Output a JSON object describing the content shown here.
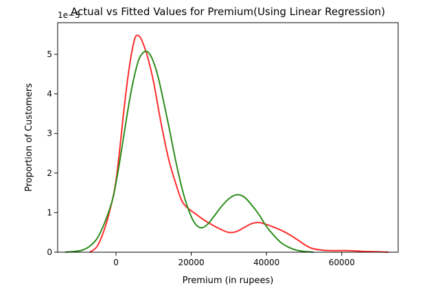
{
  "chart_data": {
    "type": "line",
    "title": "Actual vs Fitted Values for Premium(Using Linear Regression)",
    "xlabel": "Premium (in rupees)",
    "ylabel": "Proportion of Customers",
    "y_scale_label": "1e−5",
    "xlim": [
      -15500,
      75000
    ],
    "ylim": [
      0,
      5.8
    ],
    "x_ticks": [
      0,
      20000,
      40000,
      60000
    ],
    "x_tick_labels": [
      "0",
      "20000",
      "40000",
      "60000"
    ],
    "y_ticks": [
      0,
      1,
      2,
      3,
      4,
      5
    ],
    "y_tick_labels": [
      "0",
      "1",
      "2",
      "3",
      "4",
      "5"
    ],
    "grid": false,
    "series": [
      {
        "color": "#ff2a2a",
        "x": [
          -7000,
          -5000,
          -3000,
          -1000,
          0,
          1000,
          2000,
          3000,
          4000,
          5000,
          5700,
          6500,
          7500,
          8500,
          10000,
          12000,
          14000,
          16000,
          17500,
          19000,
          21000,
          23000,
          25000,
          28000,
          30000,
          32000,
          34000,
          36000,
          38000,
          40000,
          42000,
          44000,
          46000,
          48000,
          50000,
          52000,
          55000,
          58000,
          62000,
          66000,
          70000,
          72500
        ],
        "y": [
          0,
          0.15,
          0.6,
          1.3,
          1.8,
          2.6,
          3.5,
          4.3,
          4.95,
          5.4,
          5.48,
          5.42,
          5.2,
          4.9,
          4.3,
          3.25,
          2.35,
          1.7,
          1.3,
          1.12,
          0.98,
          0.84,
          0.72,
          0.57,
          0.5,
          0.52,
          0.62,
          0.72,
          0.75,
          0.7,
          0.63,
          0.55,
          0.45,
          0.33,
          0.2,
          0.1,
          0.05,
          0.04,
          0.04,
          0.02,
          0.01,
          0
        ]
      },
      {
        "color": "#2a8c1a",
        "x": [
          -13500,
          -11000,
          -9000,
          -7000,
          -5000,
          -3000,
          -1000,
          0,
          1000,
          2000,
          3000,
          4000,
          5000,
          6000,
          7000,
          8000,
          9000,
          10000,
          11000,
          12000,
          14000,
          16000,
          18000,
          20000,
          21500,
          23000,
          24500,
          26000,
          28000,
          30000,
          32000,
          34000,
          36000,
          38000,
          40000,
          42000,
          44000,
          46000,
          48000,
          50000,
          52500
        ],
        "y": [
          0,
          0.02,
          0.05,
          0.15,
          0.35,
          0.75,
          1.3,
          1.75,
          2.3,
          2.9,
          3.5,
          4.05,
          4.5,
          4.85,
          5.02,
          5.08,
          5.0,
          4.8,
          4.5,
          4.1,
          3.2,
          2.25,
          1.45,
          0.9,
          0.67,
          0.62,
          0.72,
          0.9,
          1.15,
          1.35,
          1.45,
          1.4,
          1.2,
          0.95,
          0.65,
          0.42,
          0.23,
          0.12,
          0.05,
          0.02,
          0
        ]
      }
    ]
  }
}
